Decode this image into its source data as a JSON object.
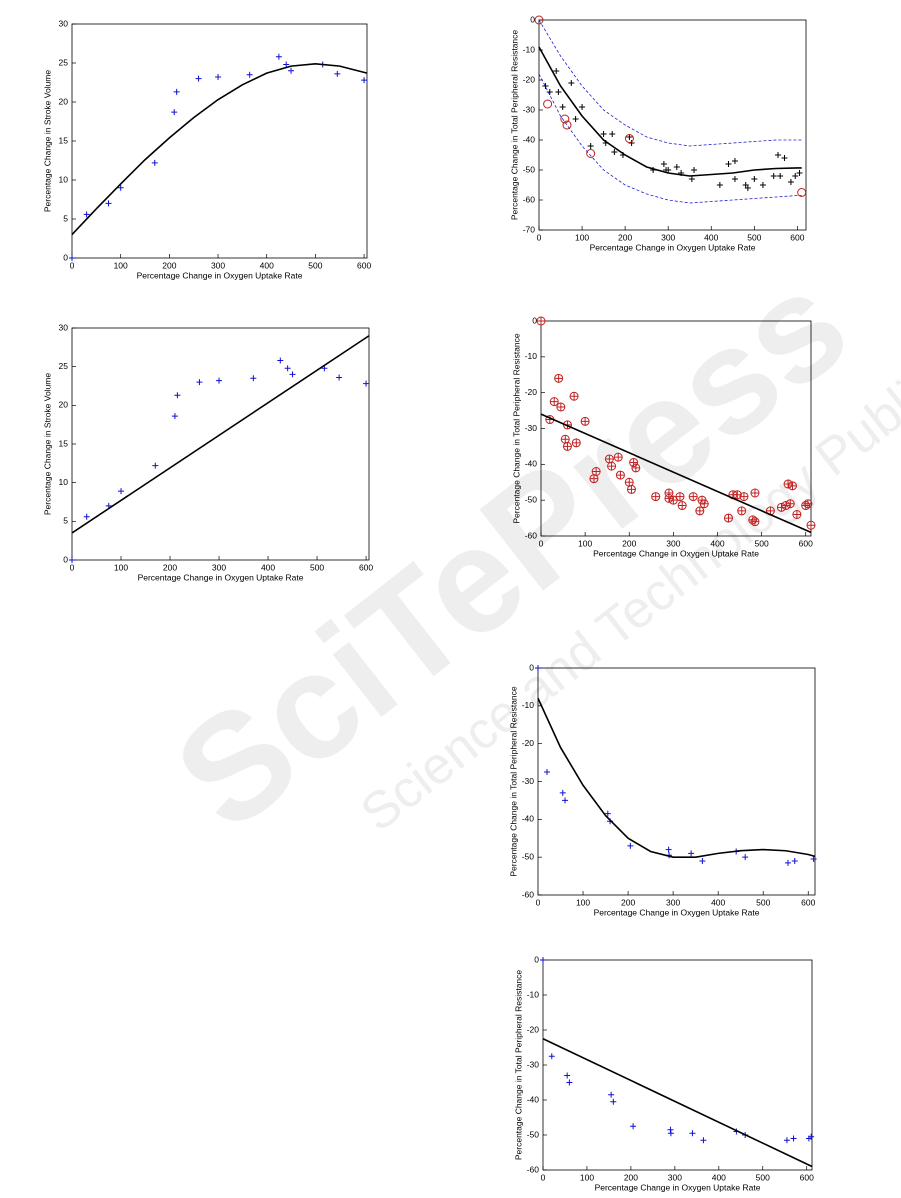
{
  "watermark": {
    "title": "SciTePress",
    "subtitle": "Science and Technology Publications"
  },
  "chart_data": [
    {
      "type": "scatter",
      "xlabel": "Percentage Change in Oxygen Uptake Rate",
      "ylabel": "Percentage Change in Stroke Volume",
      "xlim": [
        0,
        606
      ],
      "ylim": [
        0,
        30
      ],
      "xticks": [
        0,
        100,
        200,
        300,
        400,
        500,
        600
      ],
      "yticks": [
        0,
        5,
        10,
        15,
        20,
        25,
        30
      ],
      "series": [
        {
          "marker": "plus",
          "color": "#1010d0",
          "x": [
            0,
            30,
            75,
            100,
            170,
            210,
            215,
            260,
            300,
            365,
            425,
            440,
            450,
            515,
            545,
            600
          ],
          "values": [
            0,
            5.6,
            7,
            9,
            12.2,
            18.7,
            21.3,
            23,
            23.2,
            23.5,
            25.8,
            24.8,
            24,
            24.8,
            23.6,
            22.8
          ]
        },
        {
          "marker": "line",
          "color": "#000000",
          "x": [
            0,
            50,
            100,
            150,
            200,
            250,
            300,
            350,
            400,
            450,
            500,
            550,
            606
          ],
          "values": [
            3,
            6.3,
            9.5,
            12.6,
            15.4,
            18,
            20.3,
            22.2,
            23.7,
            24.6,
            24.9,
            24.6,
            23.7
          ]
        }
      ]
    },
    {
      "type": "scatter",
      "xlabel": "Percentage Change in Oxygen Uptake Rate",
      "ylabel": "Percentage Change in Stroke Volume",
      "xlim": [
        0,
        606
      ],
      "ylim": [
        0,
        30
      ],
      "xticks": [
        0,
        100,
        200,
        300,
        400,
        500,
        600
      ],
      "yticks": [
        0,
        5,
        10,
        15,
        20,
        25,
        30
      ],
      "series": [
        {
          "marker": "plus",
          "color": "#1010d0",
          "x": [
            0,
            30,
            75,
            100,
            170,
            210,
            215,
            260,
            300,
            370,
            425,
            440,
            450,
            515,
            545,
            600
          ],
          "values": [
            0,
            5.6,
            7,
            8.9,
            12.2,
            18.6,
            21.3,
            23,
            23.2,
            23.5,
            25.8,
            24.8,
            24,
            24.8,
            23.6,
            22.8
          ]
        },
        {
          "marker": "line",
          "color": "#000000",
          "x": [
            0,
            606
          ],
          "values": [
            3.5,
            29
          ]
        }
      ]
    },
    {
      "type": "scatter",
      "xlabel": "Percentage Change in Oxygen Uptake Rate",
      "ylabel": "Percentage Change in Total Peripheral Resistance",
      "xlim": [
        0,
        620
      ],
      "ylim": [
        -70,
        0
      ],
      "xticks": [
        0,
        100,
        200,
        300,
        400,
        500,
        600
      ],
      "yticks": [
        -70,
        -60,
        -50,
        -40,
        -30,
        -20,
        -10,
        0
      ],
      "series": [
        {
          "marker": "plus",
          "color": "#000000",
          "x": [
            15,
            25,
            40,
            45,
            55,
            75,
            85,
            100,
            120,
            150,
            155,
            170,
            175,
            195,
            210,
            215,
            265,
            290,
            295,
            300,
            320,
            330,
            355,
            360,
            420,
            440,
            455,
            455,
            480,
            485,
            500,
            520,
            545,
            555,
            560,
            570,
            585,
            595,
            605
          ],
          "values": [
            -22,
            -24,
            -17,
            -24,
            -29,
            -21,
            -33,
            -29,
            -42,
            -38,
            -41,
            -38,
            -44,
            -45,
            -39,
            -41,
            -50,
            -48,
            -50,
            -50,
            -49,
            -51,
            -53,
            -50,
            -55,
            -48,
            -47,
            -53,
            -55,
            -56,
            -53,
            -55,
            -52,
            -45,
            -52,
            -46,
            -54,
            -52,
            -51
          ]
        },
        {
          "marker": "circle",
          "color": "#c02020",
          "x": [
            0,
            20,
            60,
            65,
            120,
            210,
            610
          ],
          "values": [
            0,
            -28,
            -33,
            -35,
            -44.5,
            -39.5,
            -57.5
          ]
        },
        {
          "marker": "line",
          "color": "#000000",
          "x": [
            0,
            50,
            100,
            150,
            200,
            250,
            300,
            350,
            400,
            450,
            500,
            550,
            600,
            610
          ],
          "values": [
            -9,
            -22,
            -32,
            -40,
            -45,
            -49,
            -51,
            -52,
            -51.5,
            -51,
            -50,
            -49.5,
            -49.3,
            -49.3
          ]
        },
        {
          "marker": "dashed",
          "color": "#2020d0",
          "x": [
            0,
            50,
            100,
            150,
            200,
            250,
            300,
            350,
            400,
            450,
            500,
            550,
            600,
            610
          ],
          "values": [
            0,
            -12,
            -22,
            -30,
            -35,
            -39,
            -41,
            -42,
            -41.5,
            -41,
            -40.5,
            -40,
            -40,
            -40
          ]
        },
        {
          "marker": "dashed",
          "color": "#2020d0",
          "x": [
            0,
            50,
            100,
            150,
            200,
            250,
            300,
            350,
            400,
            450,
            500,
            550,
            600,
            610
          ],
          "values": [
            -18,
            -32,
            -42,
            -50,
            -55,
            -58,
            -60,
            -61,
            -60.5,
            -60,
            -59.5,
            -59,
            -58.5,
            -58.5
          ]
        }
      ]
    },
    {
      "type": "scatter",
      "xlabel": "Percentage Change in Oxygen Uptake Rate",
      "ylabel": "Percentage Change in Total Peripheral Resistance",
      "xlim": [
        0,
        612
      ],
      "ylim": [
        -60,
        0
      ],
      "xticks": [
        0,
        100,
        200,
        300,
        400,
        500,
        600
      ],
      "yticks": [
        -60,
        -50,
        -40,
        -30,
        -20,
        -10,
        0
      ],
      "series": [
        {
          "marker": "circle-plus",
          "color": "#c02020",
          "x": [
            0,
            20,
            30,
            40,
            45,
            55,
            60,
            60,
            75,
            80,
            100,
            120,
            125,
            155,
            160,
            175,
            180,
            200,
            205,
            210,
            215,
            260,
            290,
            290,
            300,
            315,
            320,
            345,
            360,
            365,
            370,
            425,
            435,
            445,
            455,
            460,
            480,
            485,
            485,
            520,
            545,
            555,
            560,
            565,
            570,
            580,
            600,
            605,
            612
          ],
          "values": [
            0,
            -27.5,
            -22.5,
            -16,
            -24,
            -33,
            -35,
            -29,
            -21,
            -34,
            -28,
            -44,
            -42,
            -38.5,
            -40.5,
            -38,
            -43,
            -45,
            -47,
            -39.5,
            -41,
            -49,
            -48,
            -49.5,
            -50,
            -49,
            -51.5,
            -49,
            -53,
            -50,
            -51,
            -55,
            -48.5,
            -48.5,
            -53,
            -49,
            -55.5,
            -56,
            -48,
            -53,
            -52,
            -51.5,
            -45.5,
            -51,
            -46,
            -54,
            -51.5,
            -51,
            -57
          ]
        },
        {
          "marker": "line",
          "color": "#000000",
          "x": [
            0,
            612
          ],
          "values": [
            -26,
            -59
          ]
        }
      ]
    },
    {
      "type": "scatter",
      "xlabel": "Percentage Change in Oxygen Uptake Rate",
      "ylabel": "Percentage Change in Total Peripheral Resistance",
      "xlim": [
        0,
        615
      ],
      "ylim": [
        -60,
        0
      ],
      "xticks": [
        0,
        100,
        200,
        300,
        400,
        500,
        600
      ],
      "yticks": [
        -60,
        -50,
        -40,
        -30,
        -20,
        -10,
        0
      ],
      "series": [
        {
          "marker": "plus",
          "color": "#1010d0",
          "x": [
            0,
            20,
            55,
            60,
            155,
            160,
            205,
            290,
            291,
            340,
            365,
            440,
            460,
            555,
            570,
            612
          ],
          "values": [
            0,
            -27.5,
            -33,
            -35,
            -38.5,
            -40.5,
            -47,
            -48,
            -49.5,
            -49,
            -51,
            -48.5,
            -50,
            -51.5,
            -51,
            -50.5
          ]
        },
        {
          "marker": "line",
          "color": "#000000",
          "x": [
            0,
            50,
            100,
            150,
            200,
            250,
            300,
            350,
            400,
            450,
            500,
            550,
            600,
            615
          ],
          "values": [
            -8,
            -21,
            -31,
            -39,
            -45,
            -48.5,
            -50,
            -50,
            -49,
            -48.3,
            -48,
            -48.3,
            -49.3,
            -49.8
          ]
        }
      ]
    },
    {
      "type": "scatter",
      "xlabel": "Percentage Change in Oxygen Uptake Rate",
      "ylabel": "Percentage Change in Total Peripheral Resistance",
      "xlim": [
        0,
        612
      ],
      "ylim": [
        -60,
        0
      ],
      "xticks": [
        0,
        100,
        200,
        300,
        400,
        500,
        600
      ],
      "yticks": [
        -60,
        -50,
        -40,
        -30,
        -20,
        -10,
        0
      ],
      "series": [
        {
          "marker": "plus",
          "color": "#1010d0",
          "x": [
            0,
            20,
            55,
            60,
            155,
            160,
            205,
            290,
            291,
            340,
            365,
            440,
            460,
            555,
            570,
            605,
            610
          ],
          "values": [
            0,
            -27.5,
            -33,
            -35,
            -38.5,
            -40.5,
            -47.5,
            -48.5,
            -49.5,
            -49.5,
            -51.5,
            -49,
            -50,
            -51.5,
            -51,
            -51,
            -50.5
          ]
        },
        {
          "marker": "line",
          "color": "#000000",
          "x": [
            0,
            612
          ],
          "values": [
            -22.5,
            -59
          ]
        }
      ]
    }
  ]
}
